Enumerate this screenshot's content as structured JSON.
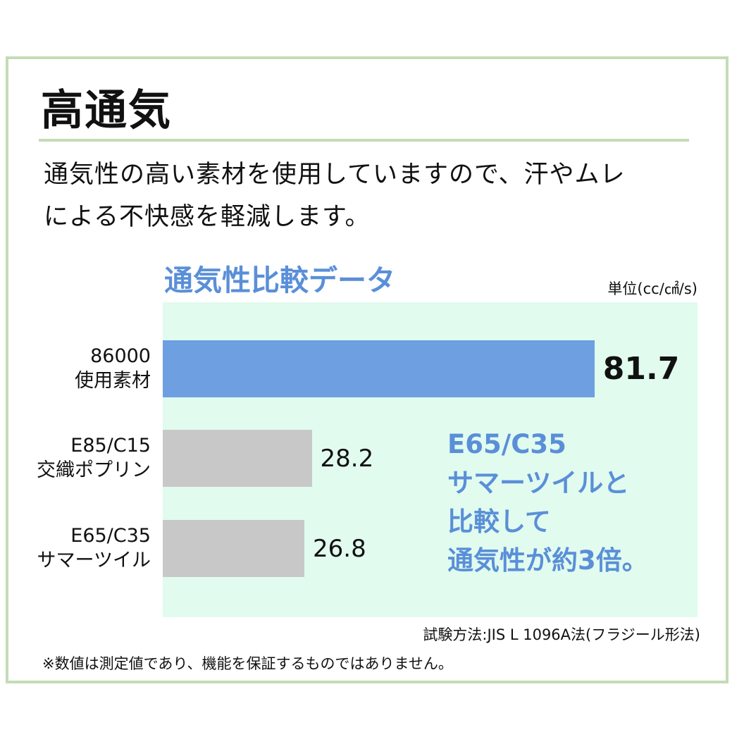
{
  "heading": "高通気",
  "description": [
    "通気性の高い素材を使用していますので、汗やムレ",
    "による不快感を軽減します。"
  ],
  "chart_data": {
    "type": "bar",
    "orientation": "horizontal",
    "title": "通気性比較データ",
    "unit": "単位(cc/㎠/s)",
    "categories": [
      {
        "line1": "86000",
        "line2": "使用素材",
        "value": 81.7,
        "label": "81.7",
        "color": "#6e9fe1",
        "highlight": true
      },
      {
        "line1": "E85/C15",
        "line2": "交織ポプリン",
        "value": 28.2,
        "label": "28.2",
        "color": "#c8c8c8",
        "highlight": false
      },
      {
        "line1": "E65/C35",
        "line2": "サマーツイル",
        "value": 26.8,
        "label": "26.8",
        "color": "#c8c8c8",
        "highlight": false
      }
    ],
    "xlim": [
      0,
      100
    ],
    "grid": false,
    "legend": "none"
  },
  "callout": [
    "E65/C35",
    "サマーツイルと",
    "比較して",
    "通気性が約3倍。"
  ],
  "test_method": "試験方法:JIS L 1096A法(フラジール形法)",
  "footnote": "※数値は測定値であり、機能を保証するものではありません。",
  "colors": {
    "frame": "#c5dcb6",
    "plot_bg": "#e1fbef",
    "accent": "#5a8fd8",
    "bar_main": "#6e9fe1",
    "bar_other": "#c8c8c8"
  }
}
